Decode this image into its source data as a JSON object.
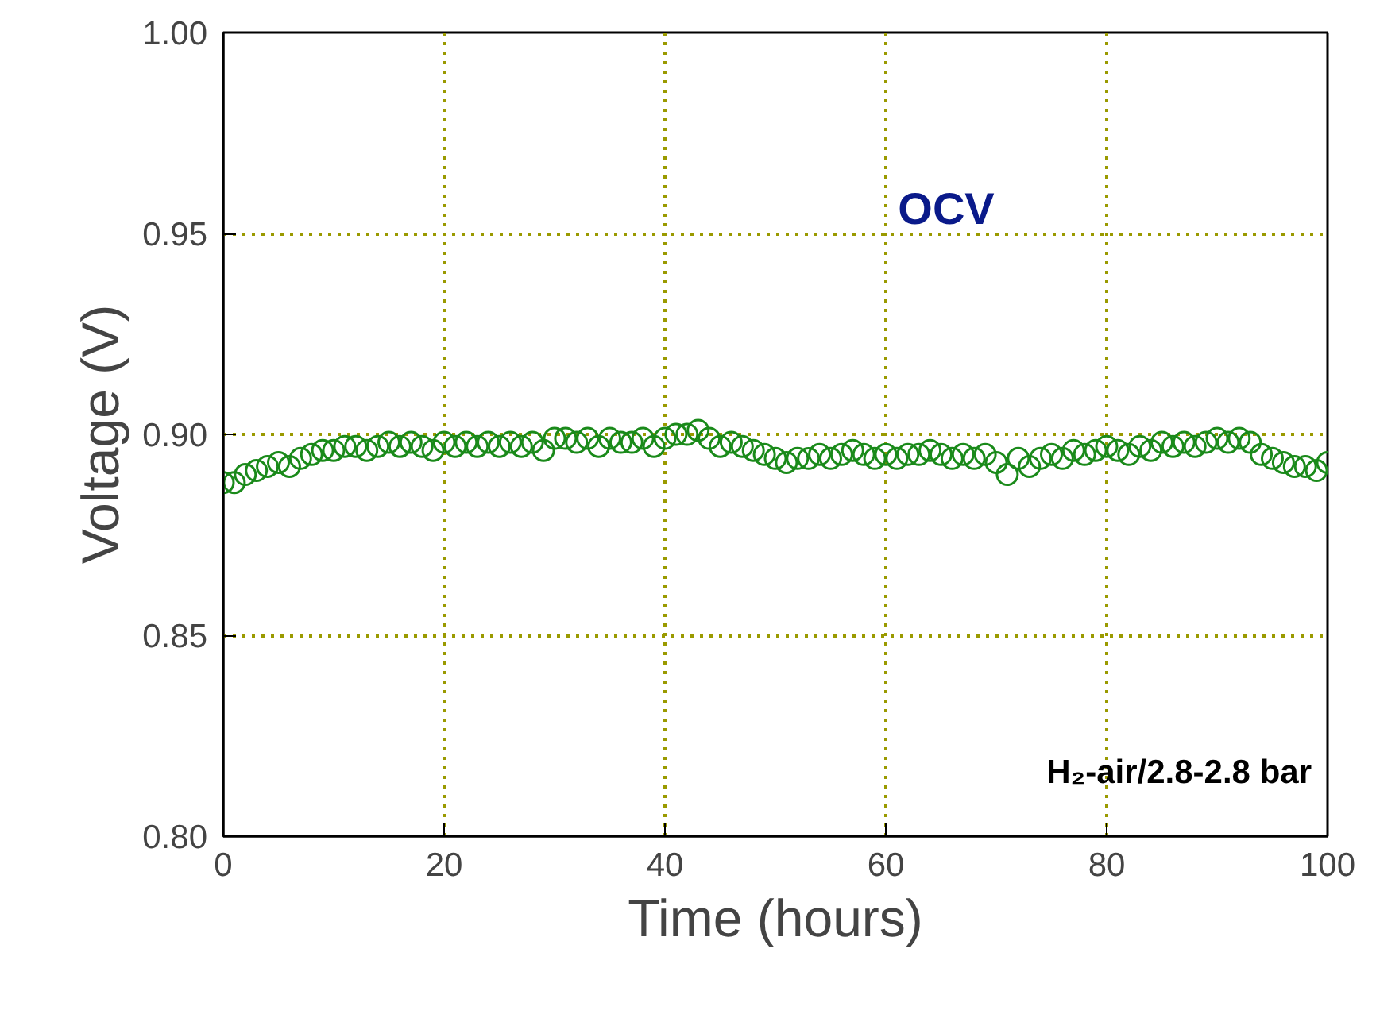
{
  "chart_data": {
    "type": "scatter",
    "xlabel": "Time (hours)",
    "ylabel": "Voltage (V)",
    "x": [
      0,
      1,
      2,
      3,
      4,
      5,
      6,
      7,
      8,
      9,
      10,
      11,
      12,
      13,
      14,
      15,
      16,
      17,
      18,
      19,
      20,
      21,
      22,
      23,
      24,
      25,
      26,
      27,
      28,
      29,
      30,
      31,
      32,
      33,
      34,
      35,
      36,
      37,
      38,
      39,
      40,
      41,
      42,
      43,
      44,
      45,
      46,
      47,
      48,
      49,
      50,
      51,
      52,
      53,
      54,
      55,
      56,
      57,
      58,
      59,
      60,
      61,
      62,
      63,
      64,
      65,
      66,
      67,
      68,
      69,
      70,
      71,
      72,
      73,
      74,
      75,
      76,
      77,
      78,
      79,
      80,
      81,
      82,
      83,
      84,
      85,
      86,
      87,
      88,
      89,
      90,
      91,
      92,
      93,
      94,
      95,
      96,
      97,
      98,
      99,
      100
    ],
    "series": [
      {
        "color": "#1a8a1a",
        "values": [
          0.888,
          0.888,
          0.89,
          0.891,
          0.892,
          0.893,
          0.892,
          0.894,
          0.895,
          0.896,
          0.896,
          0.897,
          0.897,
          0.896,
          0.897,
          0.898,
          0.897,
          0.898,
          0.897,
          0.896,
          0.898,
          0.897,
          0.898,
          0.897,
          0.898,
          0.897,
          0.898,
          0.897,
          0.898,
          0.896,
          0.899,
          0.899,
          0.898,
          0.899,
          0.897,
          0.899,
          0.898,
          0.898,
          0.899,
          0.897,
          0.899,
          0.9,
          0.9,
          0.901,
          0.899,
          0.897,
          0.898,
          0.897,
          0.896,
          0.895,
          0.894,
          0.893,
          0.894,
          0.894,
          0.895,
          0.894,
          0.895,
          0.896,
          0.895,
          0.894,
          0.895,
          0.894,
          0.895,
          0.895,
          0.896,
          0.895,
          0.894,
          0.895,
          0.894,
          0.895,
          0.893,
          0.89,
          0.894,
          0.892,
          0.894,
          0.895,
          0.894,
          0.896,
          0.895,
          0.896,
          0.897,
          0.896,
          0.895,
          0.897,
          0.896,
          0.898,
          0.897,
          0.898,
          0.897,
          0.898,
          0.899,
          0.898,
          0.899,
          0.898,
          0.895,
          0.894,
          0.893,
          0.892,
          0.892,
          0.891,
          0.893
        ]
      }
    ],
    "xlim": [
      0,
      100
    ],
    "ylim": [
      0.8,
      1.0
    ],
    "xticks": [
      0,
      20,
      40,
      60,
      80,
      100
    ],
    "yticks": [
      {
        "value": 0.8,
        "label": "0.80"
      },
      {
        "value": 0.85,
        "label": "0.85"
      },
      {
        "value": 0.9,
        "label": "0.90"
      },
      {
        "value": 0.95,
        "label": "0.95"
      },
      {
        "value": 1.0,
        "label": "1.00"
      }
    ],
    "grid": true,
    "marker": "circle",
    "annotations": [
      "OCV",
      "H₂-air/2.8-2.8 bar"
    ]
  }
}
